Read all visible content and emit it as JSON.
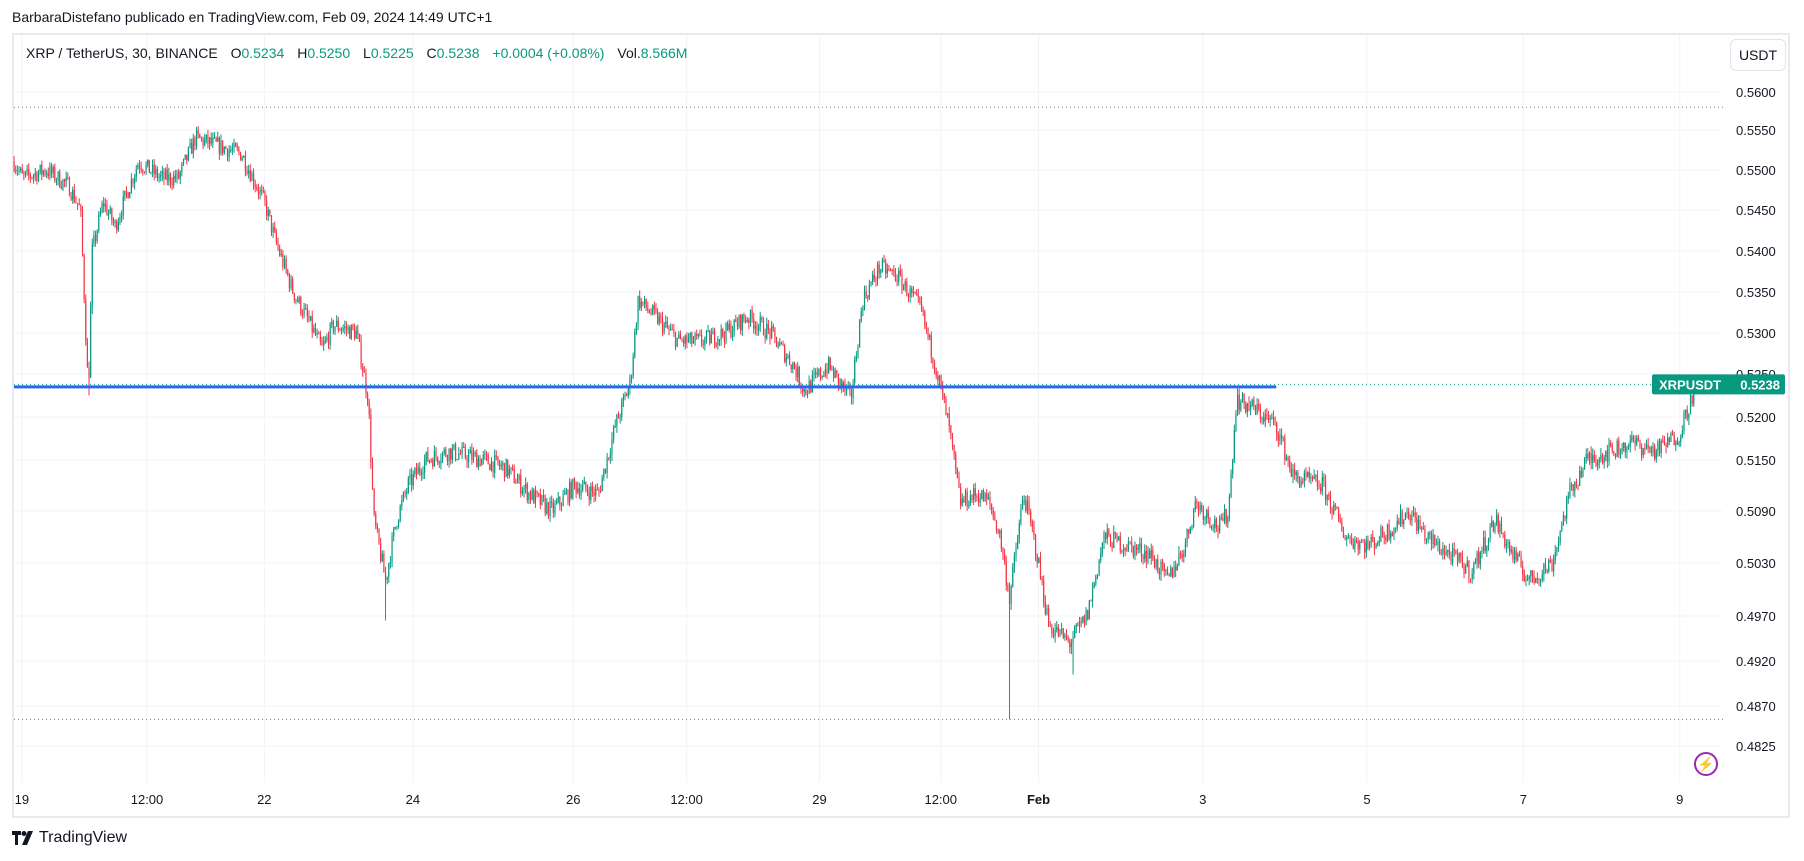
{
  "header": {
    "published": "BarbaraDistefano publicado en TradingView.com, Feb 09, 2024 14:49 UTC+1"
  },
  "legend": {
    "symbol": "XRP / TetherUS, 30, BINANCE",
    "o_label": "O",
    "o": "0.5234",
    "h_label": "H",
    "h": "0.5250",
    "l_label": "L",
    "l": "0.5225",
    "c_label": "C",
    "c": "0.5238",
    "change": "+0.0004 (+0.08%)",
    "vol_label": "Vol.",
    "vol": "8.566M"
  },
  "currency_button": "USDT",
  "price_tag": {
    "symbol": "XRPUSDT",
    "value": "0.5238"
  },
  "branding": "TradingView",
  "colors": {
    "up": "#089981",
    "down": "#f23645",
    "line": "#2962ff",
    "grid": "#f0f3fa"
  },
  "chart_data": {
    "type": "candlestick",
    "title": "XRP / TetherUS, 30, BINANCE",
    "interval_minutes": 30,
    "x_unit": "days since Jan 19 00:00",
    "y_ticks": [
      "0.5600",
      "0.5550",
      "0.5500",
      "0.5450",
      "0.5400",
      "0.5350",
      "0.5300",
      "0.5250",
      "0.5200",
      "0.5150",
      "0.5090",
      "0.5030",
      "0.4970",
      "0.4920",
      "0.4870",
      "0.4825"
    ],
    "x_ticks": [
      {
        "label": "19",
        "t": 0
      },
      {
        "label": "12:00",
        "t": 1.6
      },
      {
        "label": "22",
        "t": 3.1
      },
      {
        "label": "24",
        "t": 5.0
      },
      {
        "label": "26",
        "t": 7.05
      },
      {
        "label": "12:00",
        "t": 8.5
      },
      {
        "label": "29",
        "t": 10.2
      },
      {
        "label": "12:00",
        "t": 11.75
      },
      {
        "label": "Feb",
        "t": 13.0
      },
      {
        "label": "3",
        "t": 15.1
      },
      {
        "label": "5",
        "t": 17.2
      },
      {
        "label": "7",
        "t": 19.2
      },
      {
        "label": "9",
        "t": 21.2
      }
    ],
    "close_path": [
      [
        -0.1,
        0.551
      ],
      [
        0.01,
        0.549
      ],
      [
        0.31,
        0.55
      ],
      [
        0.6,
        0.548
      ],
      [
        0.75,
        0.545
      ],
      [
        0.85,
        0.5225
      ],
      [
        0.9,
        0.54
      ],
      [
        1.04,
        0.546
      ],
      [
        1.19,
        0.543
      ],
      [
        1.49,
        0.551
      ],
      [
        1.78,
        0.549
      ],
      [
        2.0,
        0.549
      ],
      [
        2.22,
        0.554
      ],
      [
        2.51,
        0.553
      ],
      [
        2.81,
        0.552
      ],
      [
        3.1,
        0.546
      ],
      [
        3.25,
        0.541
      ],
      [
        3.47,
        0.535
      ],
      [
        3.69,
        0.531
      ],
      [
        3.84,
        0.528
      ],
      [
        3.99,
        0.531
      ],
      [
        4.28,
        0.53
      ],
      [
        4.43,
        0.522
      ],
      [
        4.5,
        0.508
      ],
      [
        4.65,
        0.501
      ],
      [
        4.79,
        0.508
      ],
      [
        4.94,
        0.512
      ],
      [
        5.16,
        0.515
      ],
      [
        5.46,
        0.516
      ],
      [
        5.9,
        0.515
      ],
      [
        6.19,
        0.514
      ],
      [
        6.49,
        0.511
      ],
      [
        6.78,
        0.509
      ],
      [
        7.07,
        0.512
      ],
      [
        7.37,
        0.511
      ],
      [
        7.59,
        0.519
      ],
      [
        7.78,
        0.524
      ],
      [
        7.88,
        0.534
      ],
      [
        8.1,
        0.532
      ],
      [
        8.4,
        0.529
      ],
      [
        8.69,
        0.529
      ],
      [
        8.99,
        0.53
      ],
      [
        9.28,
        0.532
      ],
      [
        9.57,
        0.53
      ],
      [
        9.87,
        0.526
      ],
      [
        10.01,
        0.523
      ],
      [
        10.31,
        0.526
      ],
      [
        10.6,
        0.522
      ],
      [
        10.75,
        0.534
      ],
      [
        10.97,
        0.538
      ],
      [
        11.19,
        0.537
      ],
      [
        11.49,
        0.533
      ],
      [
        11.71,
        0.525
      ],
      [
        11.85,
        0.519
      ],
      [
        12.0,
        0.51
      ],
      [
        12.22,
        0.511
      ],
      [
        12.37,
        0.51
      ],
      [
        12.51,
        0.506
      ],
      [
        12.63,
        0.499
      ],
      [
        12.81,
        0.511
      ],
      [
        12.96,
        0.505
      ],
      [
        13.13,
        0.496
      ],
      [
        13.4,
        0.494
      ],
      [
        13.62,
        0.497
      ],
      [
        13.84,
        0.506
      ],
      [
        14.13,
        0.505
      ],
      [
        14.43,
        0.504
      ],
      [
        14.65,
        0.501
      ],
      [
        14.87,
        0.505
      ],
      [
        15.01,
        0.51
      ],
      [
        15.31,
        0.507
      ],
      [
        15.43,
        0.509
      ],
      [
        15.53,
        0.522
      ],
      [
        15.75,
        0.521
      ],
      [
        16.04,
        0.519
      ],
      [
        16.26,
        0.513
      ],
      [
        16.63,
        0.512
      ],
      [
        16.93,
        0.506
      ],
      [
        17.22,
        0.505
      ],
      [
        17.51,
        0.507
      ],
      [
        17.74,
        0.509
      ],
      [
        17.96,
        0.506
      ],
      [
        18.25,
        0.504
      ],
      [
        18.54,
        0.502
      ],
      [
        18.84,
        0.508
      ],
      [
        19.06,
        0.504
      ],
      [
        19.28,
        0.501
      ],
      [
        19.57,
        0.503
      ],
      [
        19.79,
        0.511
      ],
      [
        20.01,
        0.515
      ],
      [
        20.31,
        0.516
      ],
      [
        20.6,
        0.517
      ],
      [
        20.9,
        0.516
      ],
      [
        21.19,
        0.518
      ],
      [
        21.41,
        0.5238
      ]
    ],
    "spikes": [
      {
        "t": 0.85,
        "low": 0.5225
      },
      {
        "t": 12.63,
        "low": 0.4855
      },
      {
        "t": 4.65,
        "low": 0.4965
      },
      {
        "t": 13.45,
        "low": 0.4905
      }
    ],
    "horizontal_line": {
      "price": 0.5235,
      "t_start": -0.1,
      "t_end": 16.04
    },
    "range_high": 0.558,
    "range_low": 0.4855,
    "last_price": 0.5238
  }
}
